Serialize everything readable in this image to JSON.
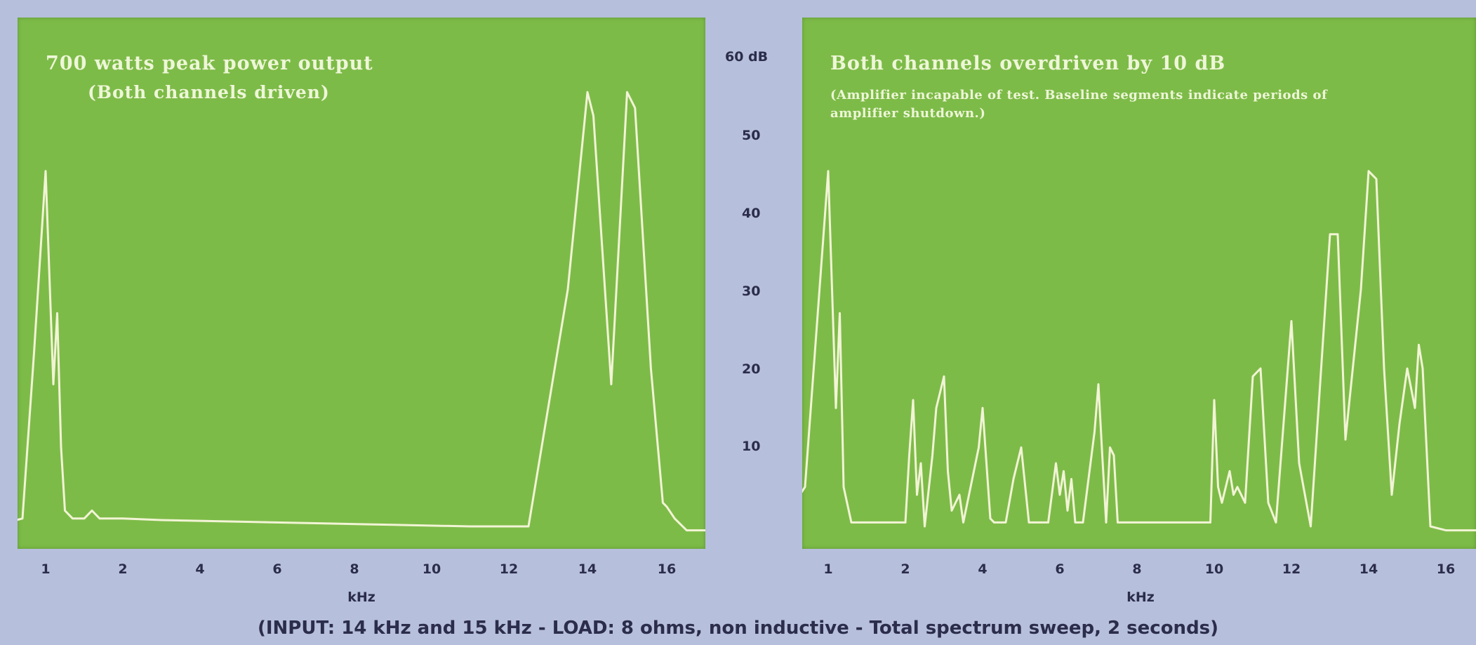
{
  "chart_data": [
    {
      "type": "line",
      "title": "700 watts peak power output",
      "subtitle": "(Both channels driven)",
      "xlabel": "kHz",
      "x_ticks": [
        "1",
        "2",
        "4",
        "6",
        "8",
        "10",
        "12",
        "14",
        "16"
      ],
      "ylim": [
        0,
        60
      ],
      "grid": false,
      "series": [
        {
          "x": [
            0.5,
            0.7,
            0.85,
            1.0,
            1.1,
            1.15,
            1.2,
            1.25,
            1.35,
            1.5,
            1.6,
            1.7,
            2.0,
            3.0,
            5.0,
            7.0,
            9.0,
            11.0,
            12.0,
            12.5,
            13.5,
            14.0,
            14.15,
            14.6,
            15.0,
            15.2,
            15.6,
            15.9,
            16.0,
            16.2,
            16.5,
            17.0
          ],
          "y": [
            0.5,
            1.0,
            22,
            45,
            18,
            27,
            10,
            2,
            1.0,
            1.0,
            2.0,
            1.0,
            1.0,
            0.8,
            0.6,
            0.4,
            0.2,
            0.0,
            0.0,
            0.0,
            30,
            55,
            52,
            18,
            55,
            53,
            20,
            3,
            2.5,
            1.0,
            -0.5,
            -0.5
          ]
        }
      ]
    },
    {
      "type": "line",
      "title": "Both channels overdriven by 10 dB",
      "subtitle": "(Amplifier incapable of test. Baseline segments indicate periods of amplifier shutdown.)",
      "xlabel": "kHz",
      "x_ticks": [
        "1",
        "2",
        "4",
        "6",
        "8",
        "10",
        "12",
        "14",
        "16"
      ],
      "yaxis_label": "60 dB",
      "y_ticks": [
        "50",
        "40",
        "30",
        "20",
        "10"
      ],
      "ylim": [
        0,
        60
      ],
      "grid": false,
      "series": [
        {
          "x": [
            0.5,
            0.7,
            0.85,
            1.0,
            1.1,
            1.15,
            1.2,
            1.3,
            2.0,
            2.1,
            2.2,
            2.3,
            2.4,
            2.5,
            2.7,
            2.8,
            3.0,
            3.1,
            3.2,
            3.4,
            3.5,
            3.9,
            4.0,
            4.2,
            4.3,
            4.6,
            4.8,
            5.0,
            5.2,
            5.3,
            5.7,
            5.9,
            6.0,
            6.1,
            6.2,
            6.3,
            6.4,
            6.6,
            6.9,
            7.0,
            7.1,
            7.2,
            7.3,
            7.4,
            7.5,
            8.0,
            9.0,
            9.9,
            10.0,
            10.1,
            10.2,
            10.4,
            10.5,
            10.6,
            10.8,
            11.0,
            11.2,
            11.4,
            11.6,
            12.0,
            12.2,
            12.5,
            13.0,
            13.2,
            13.4,
            13.8,
            14.0,
            14.2,
            14.4,
            14.6,
            14.8,
            15.0,
            15.2,
            15.3,
            15.4,
            15.6,
            16.0,
            17.0
          ],
          "y": [
            2,
            5,
            25,
            45,
            15,
            27,
            5,
            0.5,
            0.5,
            9,
            16,
            4,
            8,
            0,
            9,
            15,
            19,
            7,
            2,
            4,
            0.5,
            10,
            15,
            1,
            0.5,
            0.5,
            6,
            10,
            0.5,
            0.5,
            0.5,
            8,
            4,
            7,
            2,
            6,
            0.5,
            0.5,
            12,
            18,
            9,
            0.5,
            10,
            9,
            0.5,
            0.5,
            0.5,
            0.5,
            16,
            5,
            3,
            7,
            4,
            5,
            3,
            19,
            20,
            3,
            0.5,
            26,
            8,
            0,
            37,
            37,
            11,
            30,
            45,
            44,
            20,
            4,
            13,
            20,
            15,
            23,
            20,
            0.0,
            -0.5,
            -0.5
          ]
        }
      ]
    }
  ],
  "footnote": "(INPUT: 14 kHz and 15 kHz  -  LOAD: 8 ohms, non inductive  -  Total spectrum sweep, 2 seconds)",
  "colors": {
    "background": "#b6bfdc",
    "panel": "#7dbb48",
    "trace": "#f2f4d6",
    "label_text": "#2b2d4a"
  }
}
